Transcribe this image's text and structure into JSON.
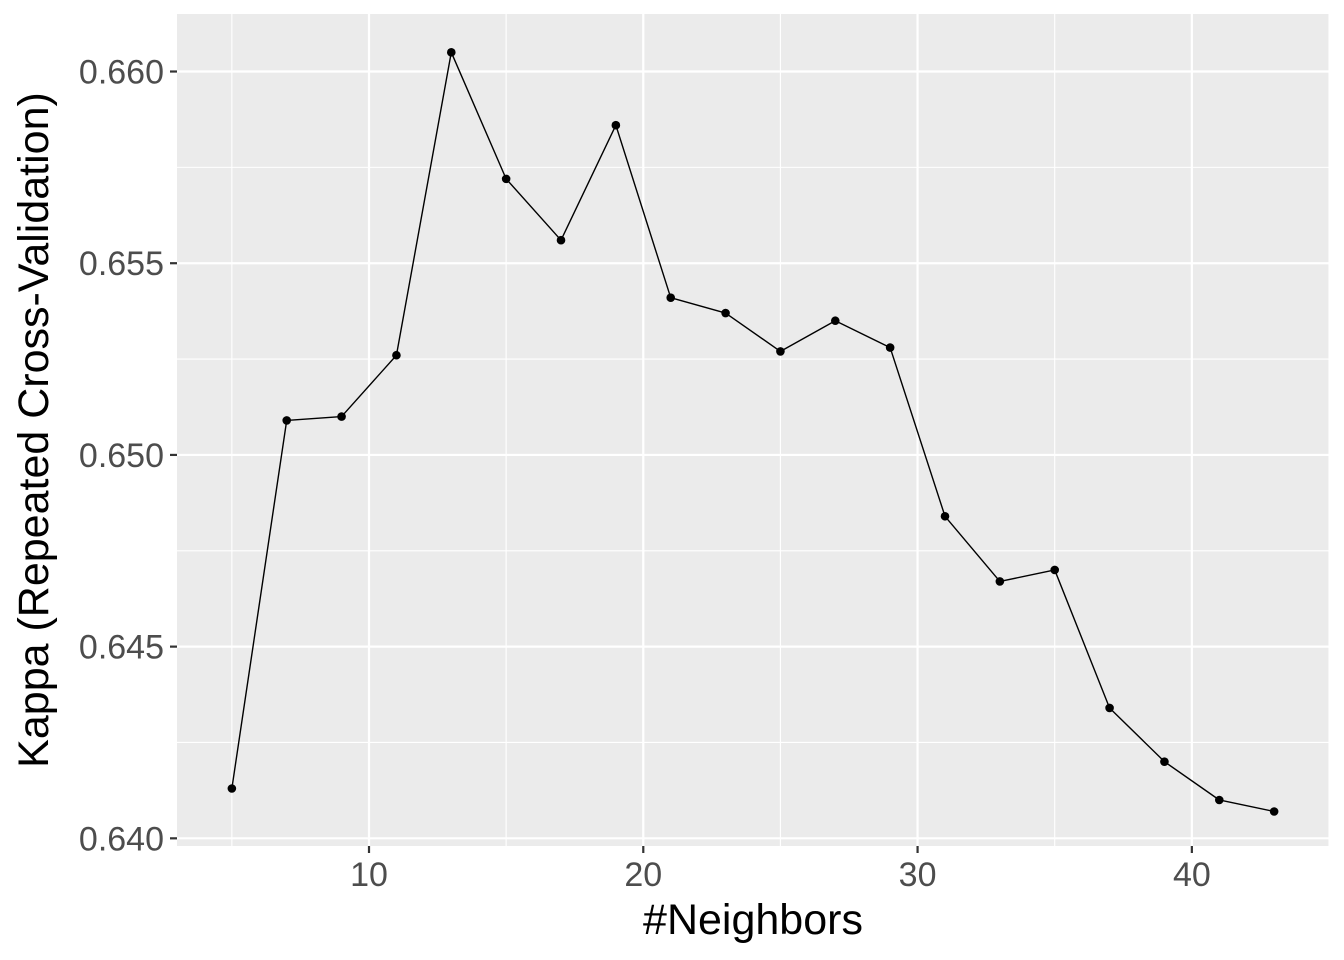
{
  "chart_data": {
    "type": "line",
    "xlabel": "#Neighbors",
    "ylabel": "Kappa (Repeated Cross-Validation)",
    "x": [
      5,
      7,
      9,
      11,
      13,
      15,
      17,
      19,
      21,
      23,
      25,
      27,
      29,
      31,
      33,
      35,
      37,
      39,
      41,
      43
    ],
    "series": [
      {
        "values": [
          0.6413,
          0.6509,
          0.651,
          0.6526,
          0.6605,
          0.6572,
          0.6556,
          0.6586,
          0.6541,
          0.6537,
          0.6527,
          0.6535,
          0.6528,
          0.6484,
          0.6467,
          0.647,
          0.6434,
          0.642,
          0.641,
          0.6407
        ]
      }
    ],
    "xlim": [
      3.0,
      45.0
    ],
    "ylim": [
      0.6398,
      0.6615
    ],
    "x_ticks": [
      10,
      20,
      30,
      40
    ],
    "x_tick_labels": [
      "10",
      "20",
      "30",
      "40"
    ],
    "y_ticks": [
      0.64,
      0.645,
      0.65,
      0.655,
      0.66
    ],
    "y_tick_labels": [
      "0.640",
      "0.645",
      "0.650",
      "0.655",
      "0.660"
    ],
    "grid": true,
    "legend": "none",
    "colors": {
      "panel_background": "#EBEBEB",
      "grid": "#FFFFFF",
      "line": "#000000",
      "point": "#000000",
      "tick_label": "#4D4D4D",
      "tick_mark": "#333333",
      "axis_title": "#000000"
    }
  }
}
